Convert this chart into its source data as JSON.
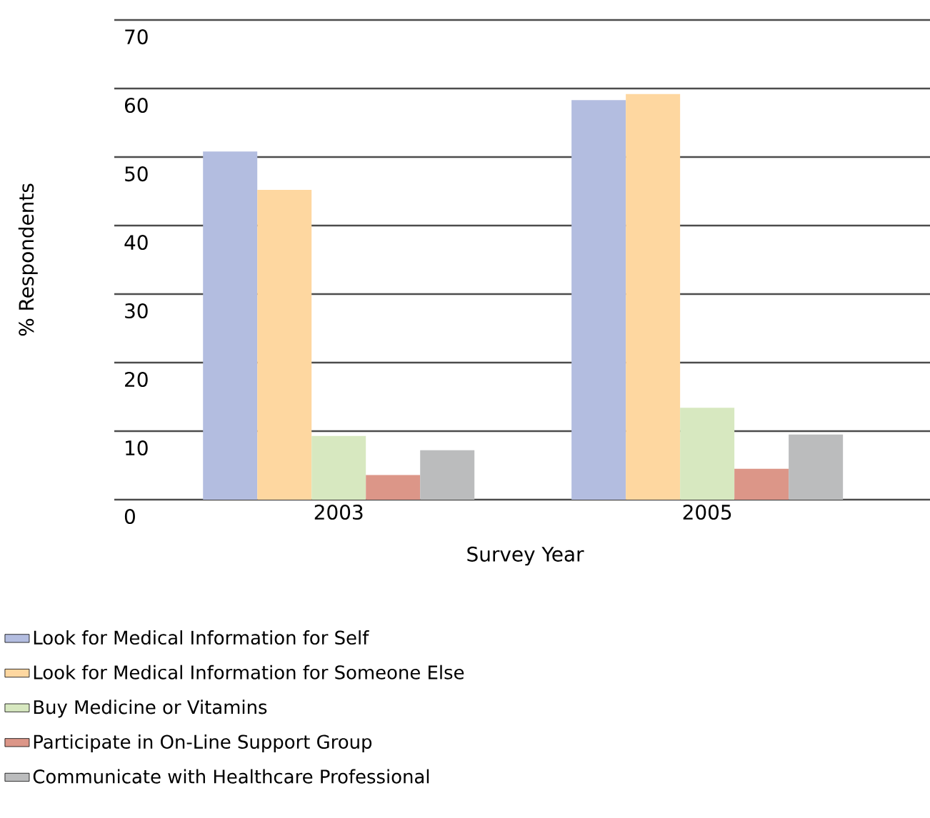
{
  "chart_data": {
    "type": "bar",
    "xlabel": "Survey Year",
    "ylabel": "% Respondents",
    "categories": [
      "2003",
      "2005"
    ],
    "series": [
      {
        "name": "Look for Medical Information for Self",
        "color": "#b3bde0",
        "values": [
          50.8,
          58.3
        ]
      },
      {
        "name": "Look for Medical Information for Someone Else",
        "color": "#fed7a0",
        "values": [
          45.2,
          59.2
        ]
      },
      {
        "name": "Buy Medicine or Vitamins",
        "color": "#d7e8c0",
        "values": [
          9.3,
          13.4
        ]
      },
      {
        "name": "Participate in On-Line Support Group",
        "color": "#dc9688",
        "values": [
          3.6,
          4.5
        ]
      },
      {
        "name": "Communicate with Healthcare Professional",
        "color": "#bbbcbd",
        "values": [
          7.2,
          9.5
        ]
      }
    ],
    "ylim": [
      0,
      70
    ],
    "yticks": [
      0,
      10,
      20,
      30,
      40,
      50,
      60,
      70
    ],
    "grid": "y",
    "legend": "bottom"
  }
}
